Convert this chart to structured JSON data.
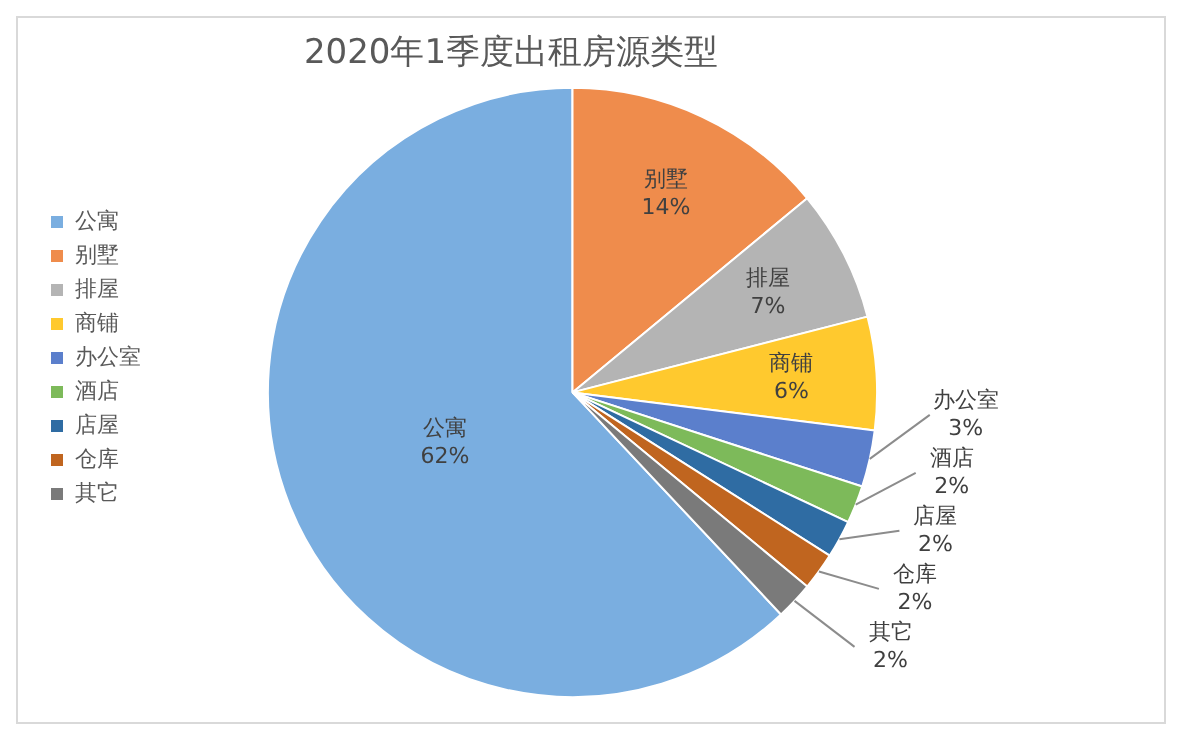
{
  "chart_data": {
    "type": "pie",
    "title": "2020年1季度出租房源类型",
    "categories": [
      "公寓",
      "别墅",
      "排屋",
      "商铺",
      "办公室",
      "酒店",
      "店屋",
      "仓库",
      "其它"
    ],
    "values": [
      62,
      14,
      7,
      6,
      3,
      2,
      2,
      2,
      2
    ],
    "value_labels": [
      "62%",
      "14%",
      "7%",
      "6%",
      "3%",
      "2%",
      "2%",
      "2%",
      "2%"
    ],
    "colors": [
      "#7aaee0",
      "#ef8c4c",
      "#b4b4b4",
      "#ffc92e",
      "#5b7fcc",
      "#7dba5a",
      "#2f6ca3",
      "#c0651f",
      "#7a7a7a"
    ],
    "legend": "left"
  }
}
